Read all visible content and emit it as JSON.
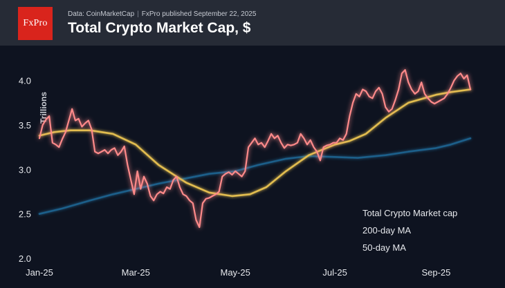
{
  "header": {
    "logo_text": "FxPro",
    "source_data": "Data: CoinMarketCap",
    "source_sep": "|",
    "source_publisher": "FxPro published September 22, 2025",
    "title": "Total Crypto Market Cap, $"
  },
  "colors": {
    "background": "#0e1320",
    "header_bg": "#262b36",
    "logo_bg": "#d9241c",
    "market_cap": "#ff8a8a",
    "ma200": "#1f5f8a",
    "ma50": "#e2bd50"
  },
  "chart_data": {
    "type": "line",
    "title": "Total Crypto Market Cap, $",
    "ylabel": "Trillions",
    "xlabel": "",
    "ylim": [
      2.0,
      4.3
    ],
    "yticks": [
      "2.0",
      "2.5",
      "3.0",
      "3.5",
      "4.0"
    ],
    "xlim": [
      "2025-01-01",
      "2025-09-22"
    ],
    "xticks": [
      {
        "date": "2025-01-01",
        "label": "Jan-25"
      },
      {
        "date": "2025-03-01",
        "label": "Mar-25"
      },
      {
        "date": "2025-05-01",
        "label": "May-25"
      },
      {
        "date": "2025-07-01",
        "label": "Jul-25"
      },
      {
        "date": "2025-09-01",
        "label": "Sep-25"
      }
    ],
    "grid": false,
    "legend_position": "bottom-right",
    "series": [
      {
        "name": "Total Crypto Market cap",
        "color": "#ff8a8a",
        "points": [
          [
            "2025-01-01",
            3.35
          ],
          [
            "2025-01-03",
            3.5
          ],
          [
            "2025-01-05",
            3.56
          ],
          [
            "2025-01-07",
            3.6
          ],
          [
            "2025-01-09",
            3.3
          ],
          [
            "2025-01-11",
            3.28
          ],
          [
            "2025-01-13",
            3.25
          ],
          [
            "2025-01-15",
            3.34
          ],
          [
            "2025-01-17",
            3.42
          ],
          [
            "2025-01-19",
            3.55
          ],
          [
            "2025-01-21",
            3.68
          ],
          [
            "2025-01-23",
            3.55
          ],
          [
            "2025-01-25",
            3.57
          ],
          [
            "2025-01-27",
            3.48
          ],
          [
            "2025-01-29",
            3.52
          ],
          [
            "2025-01-31",
            3.55
          ],
          [
            "2025-02-02",
            3.45
          ],
          [
            "2025-02-04",
            3.2
          ],
          [
            "2025-02-06",
            3.18
          ],
          [
            "2025-02-08",
            3.2
          ],
          [
            "2025-02-10",
            3.22
          ],
          [
            "2025-02-12",
            3.18
          ],
          [
            "2025-02-14",
            3.22
          ],
          [
            "2025-02-16",
            3.24
          ],
          [
            "2025-02-18",
            3.16
          ],
          [
            "2025-02-20",
            3.2
          ],
          [
            "2025-02-22",
            3.26
          ],
          [
            "2025-02-24",
            3.05
          ],
          [
            "2025-02-26",
            2.88
          ],
          [
            "2025-02-28",
            2.72
          ],
          [
            "2025-03-02",
            2.98
          ],
          [
            "2025-03-04",
            2.78
          ],
          [
            "2025-03-06",
            2.92
          ],
          [
            "2025-03-08",
            2.84
          ],
          [
            "2025-03-10",
            2.7
          ],
          [
            "2025-03-12",
            2.65
          ],
          [
            "2025-03-14",
            2.72
          ],
          [
            "2025-03-16",
            2.75
          ],
          [
            "2025-03-18",
            2.73
          ],
          [
            "2025-03-20",
            2.8
          ],
          [
            "2025-03-22",
            2.78
          ],
          [
            "2025-03-24",
            2.88
          ],
          [
            "2025-03-26",
            2.92
          ],
          [
            "2025-03-28",
            2.8
          ],
          [
            "2025-03-30",
            2.72
          ],
          [
            "2025-04-01",
            2.7
          ],
          [
            "2025-04-03",
            2.65
          ],
          [
            "2025-04-05",
            2.62
          ],
          [
            "2025-04-07",
            2.43
          ],
          [
            "2025-04-09",
            2.35
          ],
          [
            "2025-04-11",
            2.62
          ],
          [
            "2025-04-13",
            2.67
          ],
          [
            "2025-04-15",
            2.68
          ],
          [
            "2025-04-17",
            2.7
          ],
          [
            "2025-04-19",
            2.72
          ],
          [
            "2025-04-21",
            2.75
          ],
          [
            "2025-04-23",
            2.92
          ],
          [
            "2025-04-25",
            2.95
          ],
          [
            "2025-04-27",
            2.97
          ],
          [
            "2025-04-29",
            2.94
          ],
          [
            "2025-05-01",
            2.98
          ],
          [
            "2025-05-03",
            2.95
          ],
          [
            "2025-05-05",
            2.92
          ],
          [
            "2025-05-07",
            2.98
          ],
          [
            "2025-05-09",
            3.25
          ],
          [
            "2025-05-11",
            3.3
          ],
          [
            "2025-05-13",
            3.35
          ],
          [
            "2025-05-15",
            3.28
          ],
          [
            "2025-05-17",
            3.3
          ],
          [
            "2025-05-19",
            3.25
          ],
          [
            "2025-05-21",
            3.32
          ],
          [
            "2025-05-23",
            3.4
          ],
          [
            "2025-05-25",
            3.35
          ],
          [
            "2025-05-27",
            3.38
          ],
          [
            "2025-05-29",
            3.3
          ],
          [
            "2025-05-31",
            3.24
          ],
          [
            "2025-06-02",
            3.28
          ],
          [
            "2025-06-04",
            3.27
          ],
          [
            "2025-06-06",
            3.28
          ],
          [
            "2025-06-08",
            3.3
          ],
          [
            "2025-06-10",
            3.4
          ],
          [
            "2025-06-12",
            3.35
          ],
          [
            "2025-06-14",
            3.28
          ],
          [
            "2025-06-16",
            3.33
          ],
          [
            "2025-06-18",
            3.25
          ],
          [
            "2025-06-20",
            3.2
          ],
          [
            "2025-06-22",
            3.1
          ],
          [
            "2025-06-24",
            3.25
          ],
          [
            "2025-06-26",
            3.27
          ],
          [
            "2025-06-28",
            3.28
          ],
          [
            "2025-06-30",
            3.3
          ],
          [
            "2025-07-02",
            3.3
          ],
          [
            "2025-07-04",
            3.35
          ],
          [
            "2025-07-06",
            3.33
          ],
          [
            "2025-07-08",
            3.4
          ],
          [
            "2025-07-10",
            3.6
          ],
          [
            "2025-07-12",
            3.75
          ],
          [
            "2025-07-14",
            3.85
          ],
          [
            "2025-07-16",
            3.82
          ],
          [
            "2025-07-18",
            3.9
          ],
          [
            "2025-07-20",
            3.88
          ],
          [
            "2025-07-22",
            3.82
          ],
          [
            "2025-07-24",
            3.8
          ],
          [
            "2025-07-26",
            3.88
          ],
          [
            "2025-07-28",
            3.92
          ],
          [
            "2025-07-30",
            3.85
          ],
          [
            "2025-08-01",
            3.7
          ],
          [
            "2025-08-03",
            3.65
          ],
          [
            "2025-08-05",
            3.68
          ],
          [
            "2025-08-07",
            3.78
          ],
          [
            "2025-08-09",
            3.9
          ],
          [
            "2025-08-11",
            4.08
          ],
          [
            "2025-08-13",
            4.12
          ],
          [
            "2025-08-15",
            3.98
          ],
          [
            "2025-08-17",
            3.9
          ],
          [
            "2025-08-19",
            3.85
          ],
          [
            "2025-08-21",
            3.88
          ],
          [
            "2025-08-23",
            3.98
          ],
          [
            "2025-08-25",
            3.85
          ],
          [
            "2025-08-27",
            3.8
          ],
          [
            "2025-08-29",
            3.76
          ],
          [
            "2025-08-31",
            3.74
          ],
          [
            "2025-09-02",
            3.76
          ],
          [
            "2025-09-04",
            3.78
          ],
          [
            "2025-09-06",
            3.8
          ],
          [
            "2025-09-08",
            3.85
          ],
          [
            "2025-09-10",
            3.92
          ],
          [
            "2025-09-12",
            4.0
          ],
          [
            "2025-09-14",
            4.05
          ],
          [
            "2025-09-16",
            4.08
          ],
          [
            "2025-09-18",
            4.02
          ],
          [
            "2025-09-20",
            4.06
          ],
          [
            "2025-09-22",
            3.9
          ]
        ]
      },
      {
        "name": "200-day MA",
        "color": "#1f5f8a",
        "points": [
          [
            "2025-01-01",
            2.5
          ],
          [
            "2025-01-15",
            2.56
          ],
          [
            "2025-02-01",
            2.65
          ],
          [
            "2025-02-15",
            2.72
          ],
          [
            "2025-03-01",
            2.78
          ],
          [
            "2025-03-15",
            2.84
          ],
          [
            "2025-04-01",
            2.9
          ],
          [
            "2025-04-15",
            2.95
          ],
          [
            "2025-05-01",
            2.98
          ],
          [
            "2025-05-15",
            3.05
          ],
          [
            "2025-06-01",
            3.12
          ],
          [
            "2025-06-15",
            3.15
          ],
          [
            "2025-07-01",
            3.14
          ],
          [
            "2025-07-15",
            3.13
          ],
          [
            "2025-08-01",
            3.16
          ],
          [
            "2025-08-15",
            3.2
          ],
          [
            "2025-09-01",
            3.24
          ],
          [
            "2025-09-10",
            3.28
          ],
          [
            "2025-09-22",
            3.35
          ]
        ]
      },
      {
        "name": "50-day MA",
        "color": "#e2bd50",
        "points": [
          [
            "2025-01-01",
            3.38
          ],
          [
            "2025-01-10",
            3.42
          ],
          [
            "2025-01-20",
            3.44
          ],
          [
            "2025-02-01",
            3.44
          ],
          [
            "2025-02-15",
            3.4
          ],
          [
            "2025-03-01",
            3.28
          ],
          [
            "2025-03-15",
            3.05
          ],
          [
            "2025-04-01",
            2.85
          ],
          [
            "2025-04-15",
            2.74
          ],
          [
            "2025-04-29",
            2.7
          ],
          [
            "2025-05-10",
            2.72
          ],
          [
            "2025-05-20",
            2.8
          ],
          [
            "2025-06-01",
            2.98
          ],
          [
            "2025-06-15",
            3.16
          ],
          [
            "2025-07-01",
            3.28
          ],
          [
            "2025-07-10",
            3.32
          ],
          [
            "2025-07-20",
            3.4
          ],
          [
            "2025-08-01",
            3.58
          ],
          [
            "2025-08-15",
            3.75
          ],
          [
            "2025-09-01",
            3.84
          ],
          [
            "2025-09-10",
            3.87
          ],
          [
            "2025-09-22",
            3.9
          ]
        ]
      }
    ]
  }
}
